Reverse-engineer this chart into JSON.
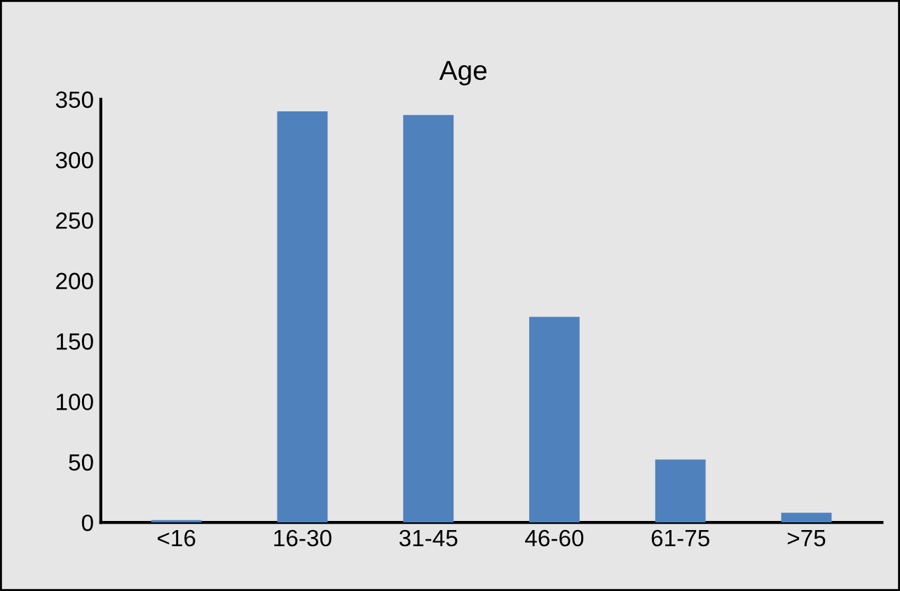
{
  "chart_data": {
    "type": "bar",
    "title": "Age",
    "categories": [
      "<16",
      "16-30",
      "31-45",
      "46-60",
      "61-75",
      ">75"
    ],
    "values": [
      2,
      340,
      337,
      170,
      52,
      8
    ],
    "color": "#4f81bd",
    "ylim": [
      0,
      350
    ],
    "yticks": [
      0,
      50,
      100,
      150,
      200,
      250,
      300,
      350
    ],
    "grid": false
  }
}
